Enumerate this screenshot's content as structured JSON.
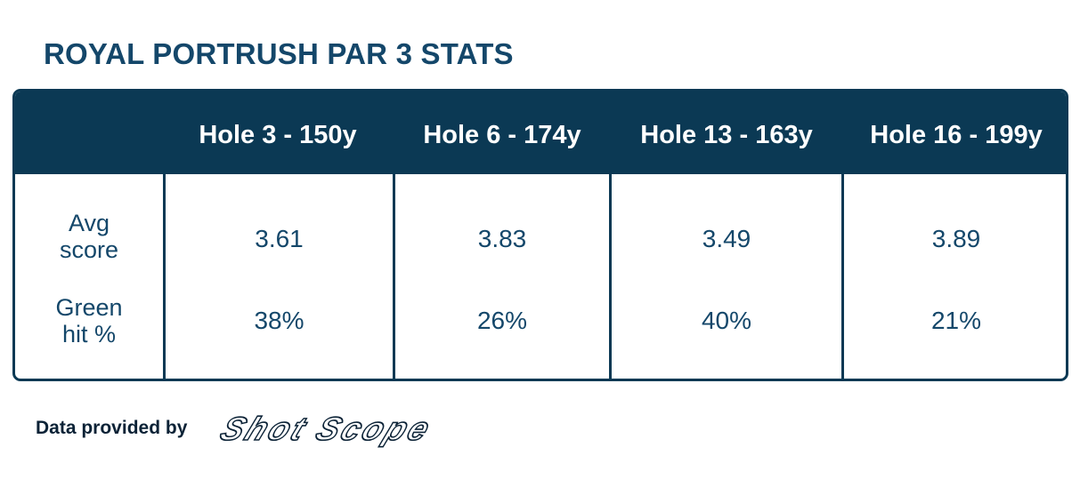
{
  "title": "ROYAL PORTRUSH PAR 3 STATS",
  "colors": {
    "header_bg": "#0b3954",
    "title_text": "#14476a",
    "cell_text": "#14476a",
    "header_text": "#ffffff"
  },
  "table": {
    "columns": [
      "Hole 3 - 150y",
      "Hole 6 - 174y",
      "Hole 13 - 163y",
      "Hole 16 - 199y"
    ],
    "rows": [
      {
        "label_line1": "Avg",
        "label_line2": "score",
        "values": [
          "3.61",
          "3.83",
          "3.49",
          "3.89"
        ]
      },
      {
        "label_line1": "Green",
        "label_line2": "hit %",
        "values": [
          "38%",
          "26%",
          "40%",
          "21%"
        ]
      }
    ]
  },
  "footer": {
    "provided_by": "Data provided by",
    "logo_text": "Shot Scope"
  }
}
